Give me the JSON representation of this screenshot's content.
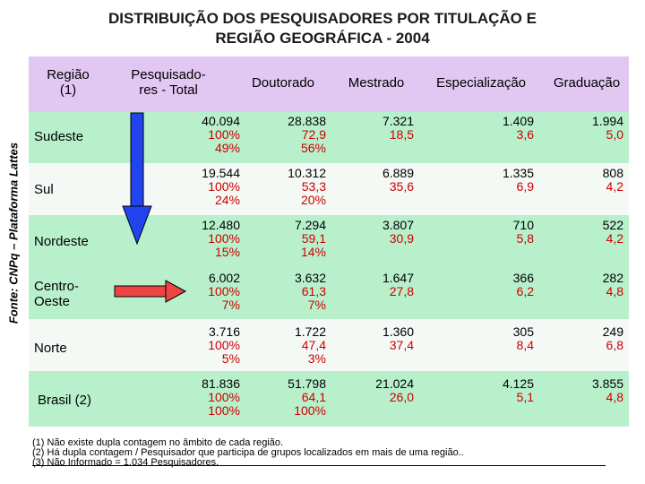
{
  "title": {
    "line1": "DISTRIBUIÇÃO DOS PESQUISADORES POR TITULAÇÃO E",
    "line2": "REGIÃO GEOGRÁFICA - 2004"
  },
  "side_label": "Fonte: CNPq – Plataforma Lattes",
  "headers": {
    "regiao_1": "Região",
    "regiao_2": "(1)",
    "total_1": "Pesquisado-",
    "total_2": "res - Total",
    "doutorado": "Doutorado",
    "mestrado": "Mestrado",
    "especializacao": "Especialização",
    "graduacao": "Graduação"
  },
  "rows": [
    {
      "name": "Sudeste",
      "total": [
        "40.094",
        "100%",
        "49%"
      ],
      "doutorado": [
        "28.838",
        "72,9",
        "56%"
      ],
      "mestrado": [
        "7.321",
        "18,5"
      ],
      "especializacao": [
        "1.409",
        "3,6"
      ],
      "graduacao": [
        "1.994",
        "5,0"
      ]
    },
    {
      "name": "Sul",
      "total": [
        "19.544",
        "100%",
        "24%"
      ],
      "doutorado": [
        "10.312",
        "53,3",
        "20%"
      ],
      "mestrado": [
        "6.889",
        "35,6"
      ],
      "especializacao": [
        "1.335",
        "6,9"
      ],
      "graduacao": [
        "808",
        "4,2"
      ]
    },
    {
      "name": "Nordeste",
      "total": [
        "12.480",
        "100%",
        "15%"
      ],
      "doutorado": [
        "7.294",
        "59,1",
        "14%"
      ],
      "mestrado": [
        "3.807",
        "30,9"
      ],
      "especializacao": [
        "710",
        "5,8"
      ],
      "graduacao": [
        "522",
        "4,2"
      ]
    },
    {
      "name_1": "Centro-",
      "name_2": "Oeste",
      "total": [
        "6.002",
        "100%",
        "7%"
      ],
      "doutorado": [
        "3.632",
        "61,3",
        "7%"
      ],
      "mestrado": [
        "1.647",
        "27,8"
      ],
      "especializacao": [
        "366",
        "6,2"
      ],
      "graduacao": [
        "282",
        "4,8"
      ]
    },
    {
      "name": "Norte",
      "total": [
        "3.716",
        "100%",
        "5%"
      ],
      "doutorado": [
        "1.722",
        "47,4",
        "3%"
      ],
      "mestrado": [
        "1.360",
        "37,4"
      ],
      "especializacao": [
        "305",
        "8,4"
      ],
      "graduacao": [
        "249",
        "6,8"
      ]
    },
    {
      "name": "Brasil (2)",
      "total": [
        "81.836",
        "100%",
        "100%"
      ],
      "doutorado": [
        "51.798",
        "64,1",
        "100%"
      ],
      "mestrado": [
        "21.024",
        "26,0"
      ],
      "especializacao": [
        "4.125",
        "5,1"
      ],
      "graduacao": [
        "3.855",
        "4,8"
      ]
    }
  ],
  "notes": [
    "(1) Não existe dupla contagem no âmbito de cada região.",
    "(2) Há dupla contagem / Pesquisador que participa de grupos localizados em mais de uma região..",
    "(3) Não Informado = 1.034 Pesquisadores."
  ],
  "colors": {
    "header_band": "#e3c7f3",
    "green_band": "#b8f0cc",
    "light_band": "#f4f9f6",
    "red_values": "#cc0000",
    "arrow_blue": "#2244ee",
    "arrow_red": "#ee4444"
  }
}
